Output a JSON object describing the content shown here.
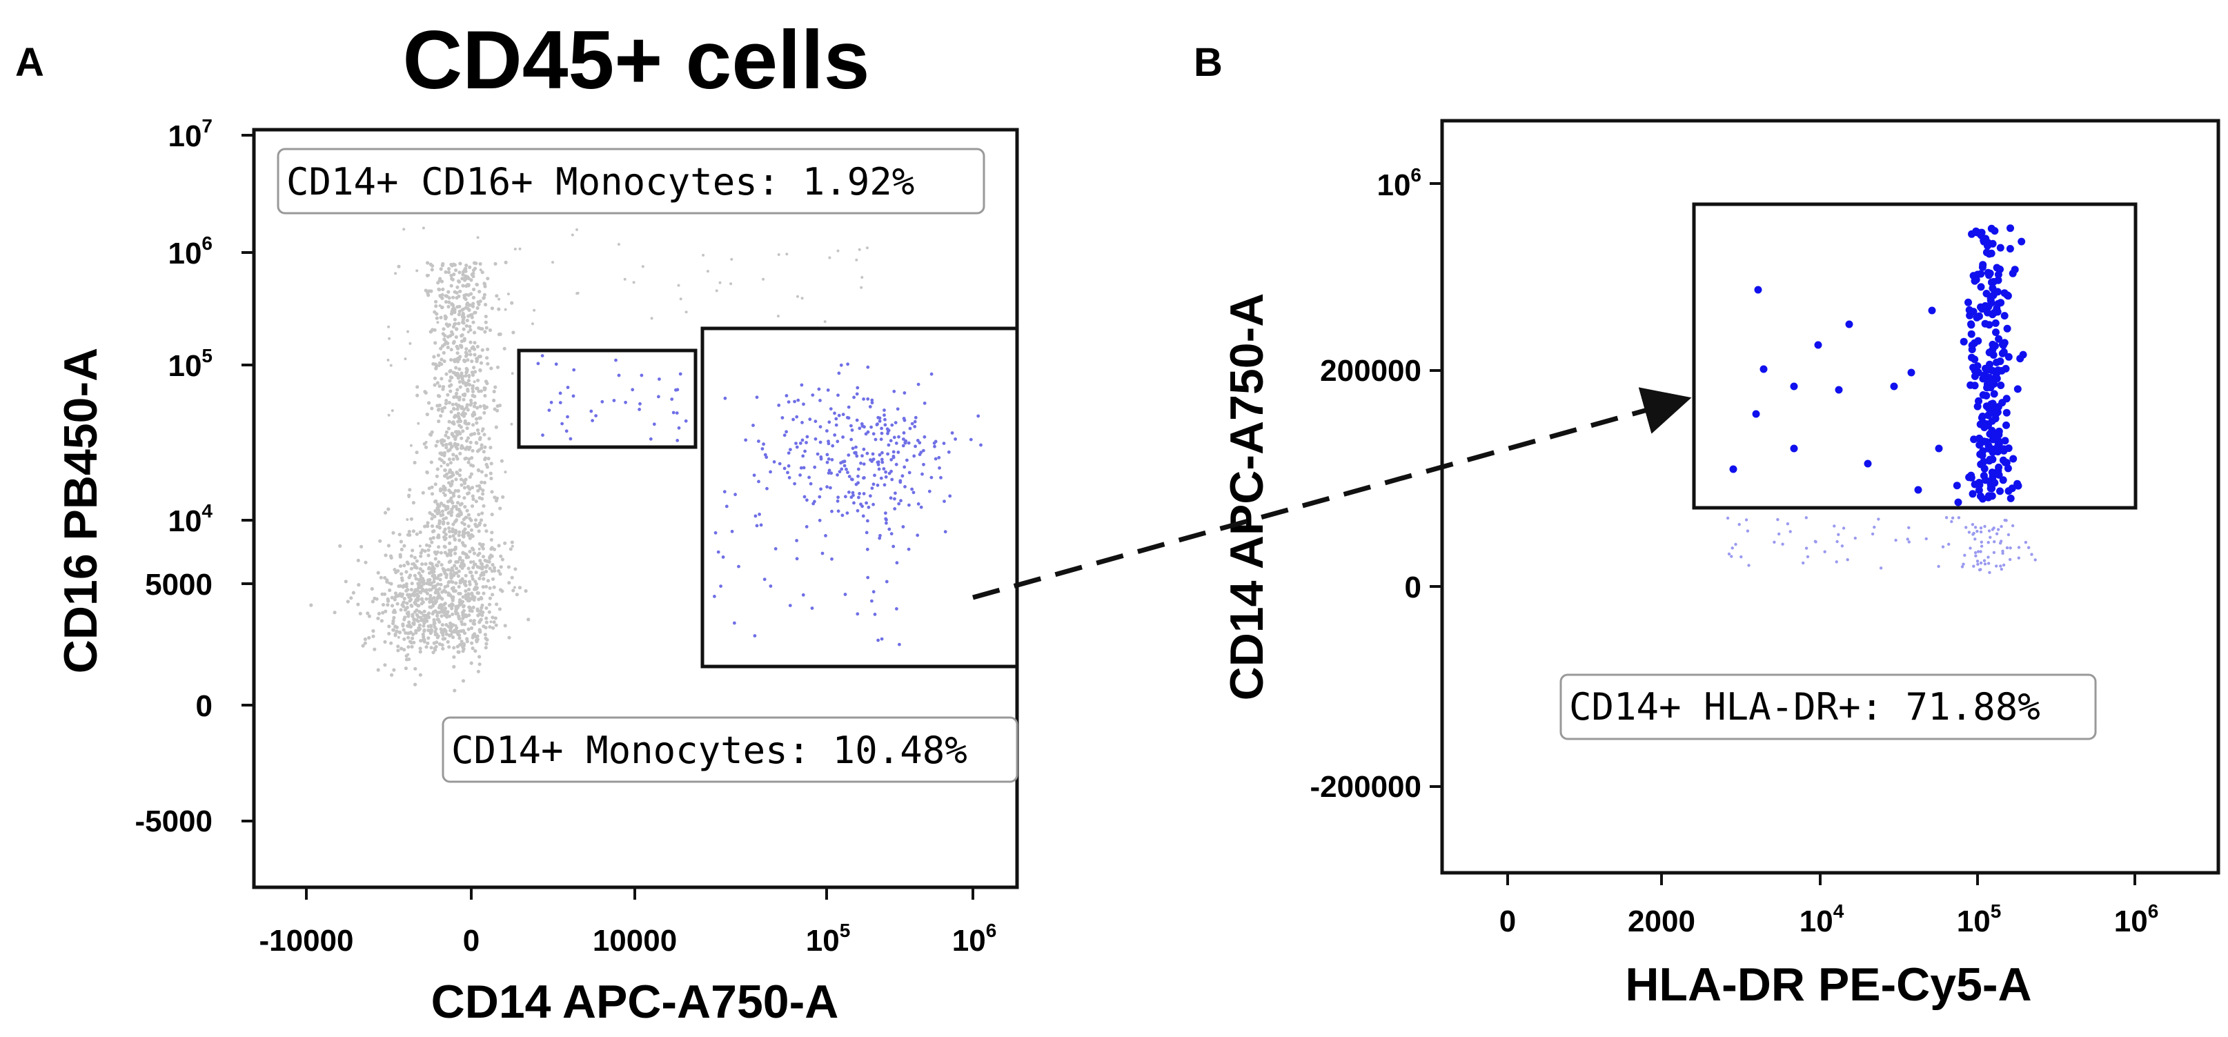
{
  "title": "CD45+ cells",
  "panels": {
    "A": {
      "letter": "A"
    },
    "B": {
      "letter": "B"
    }
  },
  "chart_data": [
    {
      "type": "scatter",
      "panel": "A",
      "title": "CD45+ cells",
      "xlabel": "CD14 APC-A750-A",
      "ylabel": "CD16 PB450-A",
      "x_ticks": [
        "-10000",
        "0",
        "10000",
        "10^5",
        "10^6"
      ],
      "y_ticks": [
        "10^7",
        "10^6",
        "10^5",
        "10^4",
        "5000",
        "0",
        "-5000"
      ],
      "gates": [
        {
          "name": "CD14+ CD16+ Monocytes",
          "label": "CD14+ CD16+ Monocytes: 1.92%",
          "percent": 1.92
        },
        {
          "name": "CD14+ Monocytes",
          "label": "CD14+ Monocytes: 10.48%",
          "percent": 10.48
        }
      ],
      "point_colors": {
        "ungated": "#c4c4c4",
        "gated": "#6f6fe6"
      }
    },
    {
      "type": "scatter",
      "panel": "B",
      "xlabel": "HLA-DR PE-Cy5-A",
      "ylabel": "CD14 APC-A750-A",
      "x_ticks": [
        "0",
        "2000",
        "10^4",
        "10^5",
        "10^6"
      ],
      "y_ticks": [
        "10^6",
        "200000",
        "0",
        "-200000"
      ],
      "gates": [
        {
          "name": "CD14+ HLA-DR+",
          "label": "CD14+ HLA-DR+: 71.88%",
          "percent": 71.88
        }
      ],
      "point_colors": {
        "ungated": "#9a9af0",
        "gated": "#1010ee"
      }
    }
  ],
  "arrow": {
    "from": "A",
    "to": "B",
    "style": "dashed"
  }
}
